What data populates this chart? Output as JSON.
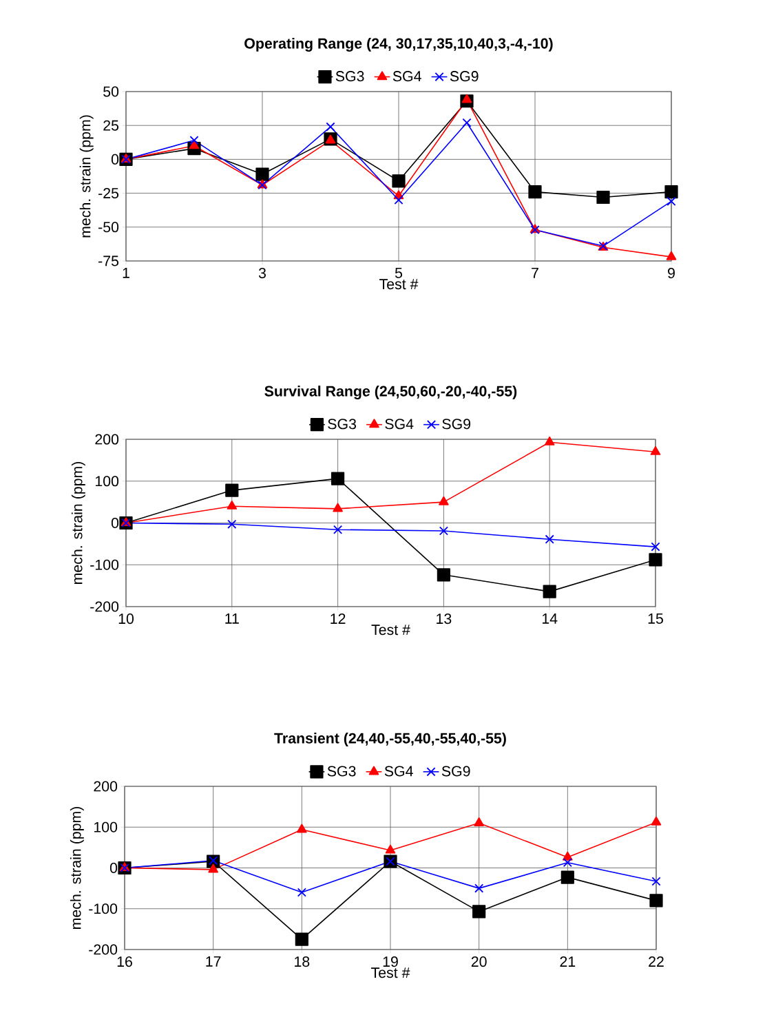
{
  "chart_data": [
    {
      "type": "line",
      "title": "Operating Range (24, 30,17,35,10,40,3,-4,-10)",
      "xlabel": "Test #",
      "ylabel": "mech. strain  (ppm)",
      "x": [
        1,
        2,
        3,
        4,
        5,
        6,
        7,
        8,
        9
      ],
      "xlim": [
        1,
        9
      ],
      "xticks": [
        1,
        3,
        5,
        7,
        9
      ],
      "ylim": [
        -75,
        50
      ],
      "yticks": [
        -75,
        -50,
        -25,
        0,
        25,
        50
      ],
      "grid": true,
      "legend": "top",
      "series": [
        {
          "name": "SG3",
          "color": "#000000",
          "marker": "square",
          "values": [
            0,
            8,
            -11,
            15,
            -16,
            43,
            -24,
            -28,
            -24
          ]
        },
        {
          "name": "SG4",
          "color": "#ff0000",
          "marker": "triangle",
          "values": [
            0,
            10,
            -19,
            14,
            -27,
            44,
            -52,
            -65,
            -72
          ]
        },
        {
          "name": "SG9",
          "color": "#0000ff",
          "marker": "cross",
          "values": [
            0,
            14,
            -19,
            24,
            -30,
            27,
            -52,
            -64,
            -31
          ]
        }
      ]
    },
    {
      "type": "line",
      "title": "Survival Range (24,50,60,-20,-40,-55)",
      "xlabel": "Test #",
      "ylabel": "mech. strain (ppm)",
      "x": [
        10,
        11,
        12,
        13,
        14,
        15
      ],
      "xlim": [
        10,
        15
      ],
      "xticks": [
        10,
        11,
        12,
        13,
        14,
        15
      ],
      "ylim": [
        -200,
        200
      ],
      "yticks": [
        -200,
        -100,
        0,
        100,
        200
      ],
      "grid": true,
      "legend": "top",
      "series": [
        {
          "name": "SG3",
          "color": "#000000",
          "marker": "square",
          "values": [
            0,
            78,
            106,
            -124,
            -164,
            -88
          ]
        },
        {
          "name": "SG4",
          "color": "#ff0000",
          "marker": "triangle",
          "values": [
            0,
            40,
            34,
            50,
            193,
            170
          ]
        },
        {
          "name": "SG9",
          "color": "#0000ff",
          "marker": "cross",
          "values": [
            0,
            -3,
            -16,
            -19,
            -39,
            -57
          ]
        }
      ]
    },
    {
      "type": "line",
      "title": "Transient (24,40,-55,40,-55,40,-55)",
      "xlabel": "Test #",
      "ylabel": "mech. strain (ppm)",
      "x": [
        16,
        17,
        18,
        19,
        20,
        21,
        22
      ],
      "xlim": [
        16,
        22
      ],
      "xticks": [
        16,
        17,
        18,
        19,
        20,
        21,
        22
      ],
      "ylim": [
        -200,
        200
      ],
      "yticks": [
        -200,
        -100,
        0,
        100,
        200
      ],
      "grid": true,
      "legend": "top",
      "series": [
        {
          "name": "SG3",
          "color": "#000000",
          "marker": "square",
          "values": [
            0,
            16,
            -175,
            16,
            -107,
            -23,
            -80
          ]
        },
        {
          "name": "SG4",
          "color": "#ff0000",
          "marker": "triangle",
          "values": [
            0,
            -4,
            94,
            43,
            110,
            26,
            112
          ]
        },
        {
          "name": "SG9",
          "color": "#0000ff",
          "marker": "cross",
          "values": [
            0,
            18,
            -60,
            16,
            -50,
            13,
            -33
          ]
        }
      ]
    }
  ]
}
